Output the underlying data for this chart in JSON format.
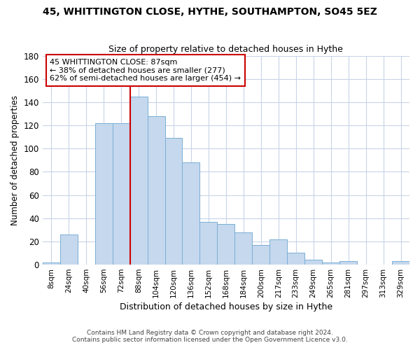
{
  "title": "45, WHITTINGTON CLOSE, HYTHE, SOUTHAMPTON, SO45 5EZ",
  "subtitle": "Size of property relative to detached houses in Hythe",
  "xlabel": "Distribution of detached houses by size in Hythe",
  "ylabel": "Number of detached properties",
  "bar_labels": [
    "8sqm",
    "24sqm",
    "40sqm",
    "56sqm",
    "72sqm",
    "88sqm",
    "104sqm",
    "120sqm",
    "136sqm",
    "152sqm",
    "168sqm",
    "184sqm",
    "200sqm",
    "217sqm",
    "233sqm",
    "249sqm",
    "265sqm",
    "281sqm",
    "297sqm",
    "313sqm",
    "329sqm"
  ],
  "bar_values": [
    2,
    26,
    0,
    122,
    122,
    145,
    128,
    109,
    88,
    37,
    35,
    28,
    17,
    22,
    10,
    4,
    2,
    3,
    0,
    0,
    3
  ],
  "bar_color": "#c5d8ed",
  "bar_edge_color": "#7aaed6",
  "vline_x_idx": 5,
  "vline_color": "#cc0000",
  "ylim": [
    0,
    180
  ],
  "annotation_text": "45 WHITTINGTON CLOSE: 87sqm\n← 38% of detached houses are smaller (277)\n62% of semi-detached houses are larger (454) →",
  "annotation_box_edgecolor": "#cc0000",
  "footnote1": "Contains HM Land Registry data © Crown copyright and database right 2024.",
  "footnote2": "Contains public sector information licensed under the Open Government Licence v3.0.",
  "background_color": "#ffffff",
  "grid_color": "#c8d4e8"
}
